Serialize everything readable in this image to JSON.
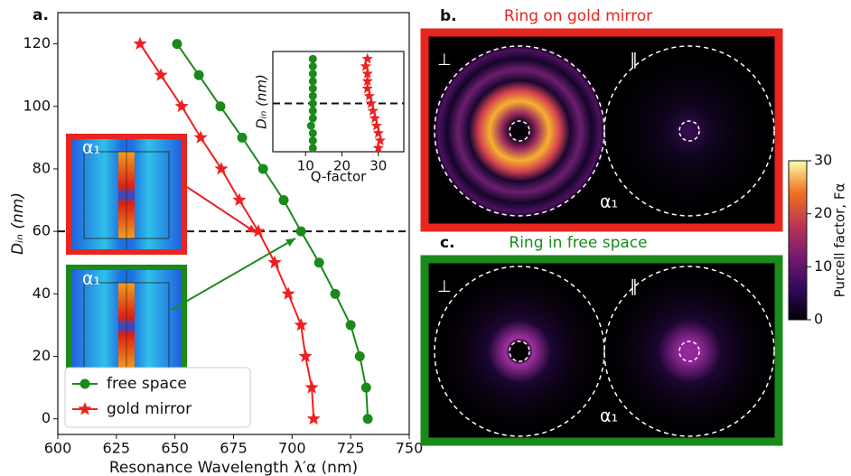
{
  "chart_data": [
    {
      "type": "line",
      "panel_label": "a.",
      "xlabel": "Resonance Wavelength λ′α (nm)",
      "ylabel": "Dᵢₙ (nm)",
      "xlim": [
        600,
        750
      ],
      "ylim": [
        -5,
        130
      ],
      "xticks": [
        600,
        625,
        650,
        675,
        700,
        725,
        750
      ],
      "yticks": [
        0,
        20,
        40,
        60,
        80,
        100,
        120
      ],
      "hline": 60,
      "legend": "lower left",
      "series": [
        {
          "name": "free space",
          "color": "#1a8a1a",
          "marker": "circle",
          "x": [
            732.3,
            731.6,
            728.9,
            725,
            718.4,
            711.5,
            703.8,
            696.4,
            687.6,
            678.7,
            669.4,
            660.2,
            650.9
          ],
          "values": [
            0,
            10,
            20,
            30,
            40,
            50,
            60,
            70,
            80,
            90,
            100,
            110,
            120
          ]
        },
        {
          "name": "gold mirror",
          "color": "#ee2020",
          "marker": "star",
          "x": [
            709.2,
            708.4,
            705.7,
            703.8,
            698.4,
            692.6,
            685.6,
            677.5,
            669.8,
            661,
            652.9,
            644,
            635.1
          ],
          "values": [
            0,
            10,
            20,
            30,
            40,
            50,
            60,
            70,
            80,
            90,
            100,
            110,
            120
          ]
        }
      ],
      "insets": [
        {
          "label": "α₁",
          "color": "#e8251f"
        },
        {
          "label": "α₁",
          "color": "#1a8a1a"
        }
      ]
    },
    {
      "type": "scatter",
      "xlabel": "Q-factor",
      "ylabel": "Dᵢₙ (nm)",
      "xlim": [
        1,
        37
      ],
      "ylim": [
        -5,
        130
      ],
      "xticks": [
        10,
        20,
        30
      ],
      "hline": 60,
      "series": [
        {
          "color": "#1a8a1a",
          "marker": "circle",
          "x": [
            12,
            12,
            12,
            11.5,
            12,
            12,
            12,
            12,
            12,
            12,
            12,
            12,
            12
          ],
          "values": [
            0,
            10,
            20,
            30,
            40,
            50,
            60,
            70,
            80,
            90,
            100,
            110,
            120
          ]
        },
        {
          "color": "#ee2020",
          "marker": "star",
          "x": [
            30,
            30.5,
            30,
            29.5,
            29,
            28.5,
            28,
            27.5,
            27,
            27,
            27,
            26.5,
            27
          ],
          "values": [
            0,
            10,
            20,
            30,
            40,
            50,
            60,
            70,
            80,
            90,
            100,
            110,
            120
          ]
        }
      ]
    },
    {
      "type": "colorbar",
      "label": "Purcell factor, Fα",
      "ylim": [
        0,
        30
      ],
      "yticks": [
        0,
        10,
        20,
        30
      ]
    }
  ],
  "panels": [
    {
      "label": "b.",
      "title": "Ring on gold mirror",
      "color": "#e8251f",
      "perp": "⊥",
      "para": "∥",
      "mode": "α₁"
    },
    {
      "label": "c.",
      "title": "Ring in free space",
      "color": "#1a8a1a",
      "perp": "⊥",
      "para": "∥",
      "mode": "α₁"
    }
  ]
}
